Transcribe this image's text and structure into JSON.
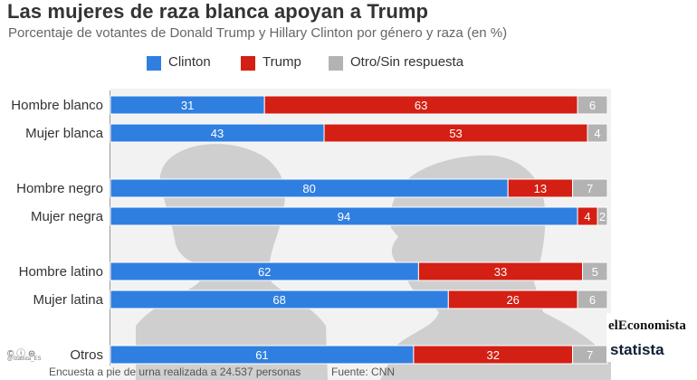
{
  "title": "Las mujeres de raza blanca apoyan a Trump",
  "subtitle": "Porcentaje de votantes de Donald Trump y Hillary Clinton por género y raza (en %)",
  "colors": {
    "clinton": "#2f7fe0",
    "trump": "#d41f14",
    "other": "#b3b3b3",
    "silhouette": "#cfcfcf",
    "background": "#f2f2f2"
  },
  "chart_data": {
    "type": "bar",
    "orientation": "horizontal-stacked",
    "title": "Las mujeres de raza blanca apoyan a Trump",
    "subtitle": "Porcentaje de votantes de Donald Trump y Hillary Clinton por género y raza (en %)",
    "categories": [
      "Hombre blanco",
      "Mujer blanca",
      "Hombre negro",
      "Mujer negra",
      "Hombre latino",
      "Mujer latina",
      "Otros"
    ],
    "series": [
      {
        "name": "Clinton",
        "values": [
          31,
          43,
          80,
          94,
          62,
          68,
          61
        ]
      },
      {
        "name": "Trump",
        "values": [
          63,
          53,
          13,
          4,
          33,
          26,
          32
        ]
      },
      {
        "name": "Otro/Sin respuesta",
        "values": [
          6,
          4,
          7,
          2,
          5,
          6,
          7
        ]
      }
    ],
    "legend": "top",
    "xlim": [
      0,
      100
    ],
    "grid": false
  },
  "footer": {
    "survey": "Encuesta a pie de urna realizada a 24.537 personas",
    "source": "Fuente: CNN",
    "handle": "@Statista_ES",
    "cc": "© ⓘ ⊜"
  },
  "brands": {
    "eleconomista": "elEconomista",
    "statista": "statista"
  }
}
